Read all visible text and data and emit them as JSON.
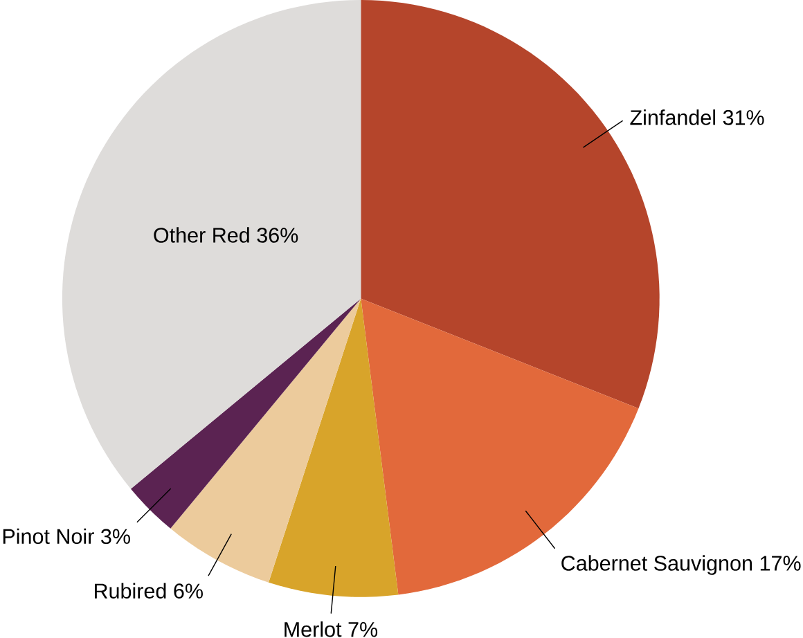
{
  "chart_data": {
    "type": "pie",
    "categories": [
      "Zinfandel",
      "Cabernet Sauvignon",
      "Merlot",
      "Rubired",
      "Pinot Noir",
      "Other Red"
    ],
    "values": [
      31,
      17,
      7,
      6,
      3,
      36
    ],
    "value_labels": [
      "31%",
      "17%",
      "7%",
      "6%",
      "3%",
      "36%"
    ],
    "colors": [
      "#b5452b",
      "#e2693b",
      "#d8a42a",
      "#eccb9c",
      "#5b2352",
      "#dedcda"
    ]
  }
}
